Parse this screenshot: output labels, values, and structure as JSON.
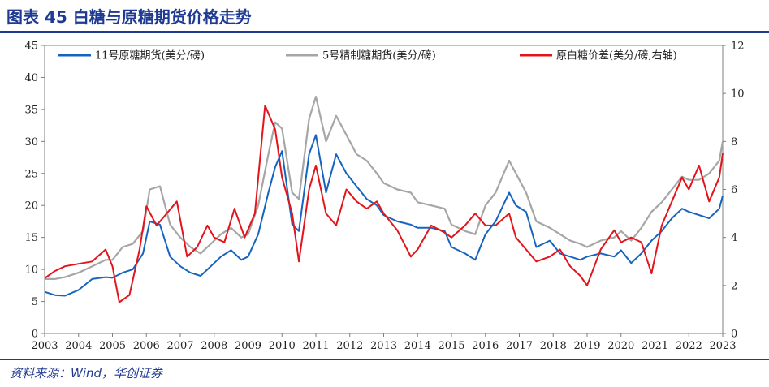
{
  "header": {
    "title": "图表 45 白糖与原糖期货价格走势"
  },
  "footer": {
    "source": "资料来源：Wind，华创证券"
  },
  "chart_data": {
    "type": "line",
    "title": "图表 45 白糖与原糖期货价格走势",
    "xlabel": "",
    "ylabel": "",
    "x": [
      2003,
      2004,
      2005,
      2006,
      2007,
      2008,
      2009,
      2010,
      2011,
      2012,
      2013,
      2014,
      2015,
      2016,
      2017,
      2018,
      2019,
      2020,
      2021,
      2022,
      2023
    ],
    "x_tick_labels": [
      "2003",
      "2004",
      "2005",
      "2006",
      "2007",
      "2008",
      "2009",
      "2010",
      "2011",
      "2012",
      "2013",
      "2014",
      "2015",
      "2016",
      "2017",
      "2018",
      "2019",
      "2020",
      "2021",
      "2022",
      "2023"
    ],
    "xlim": [
      2003,
      2023
    ],
    "ylim_left": [
      0,
      45
    ],
    "y_left_ticks": [
      0,
      5,
      10,
      15,
      20,
      25,
      30,
      35,
      40,
      45
    ],
    "ylim_right": [
      0,
      12
    ],
    "y_right_ticks": [
      0,
      2,
      4,
      6,
      8,
      10,
      12
    ],
    "legend_position": "top",
    "grid": false,
    "series": [
      {
        "name": "11号原糖期货(美分/磅)",
        "axis": "left",
        "color": "#1565c0",
        "x": [
          2003.0,
          2003.3,
          2003.6,
          2004.0,
          2004.4,
          2004.8,
          2005.0,
          2005.3,
          2005.6,
          2005.9,
          2006.1,
          2006.4,
          2006.7,
          2007.0,
          2007.3,
          2007.6,
          2007.9,
          2008.2,
          2008.5,
          2008.8,
          2009.0,
          2009.3,
          2009.6,
          2009.8,
          2010.0,
          2010.3,
          2010.5,
          2010.8,
          2011.0,
          2011.3,
          2011.6,
          2011.9,
          2012.2,
          2012.5,
          2012.8,
          2013.0,
          2013.4,
          2013.8,
          2014.0,
          2014.4,
          2014.8,
          2015.0,
          2015.4,
          2015.7,
          2016.0,
          2016.3,
          2016.7,
          2016.9,
          2017.2,
          2017.5,
          2017.9,
          2018.2,
          2018.5,
          2018.8,
          2019.0,
          2019.4,
          2019.8,
          2020.0,
          2020.3,
          2020.6,
          2020.9,
          2021.2,
          2021.5,
          2021.8,
          2022.0,
          2022.3,
          2022.6,
          2022.9,
          2023.0
        ],
        "values": [
          6.5,
          6.0,
          5.9,
          6.8,
          8.5,
          8.8,
          8.7,
          9.5,
          10.0,
          12.5,
          17.5,
          17.0,
          12.0,
          10.5,
          9.5,
          9.0,
          10.5,
          12.0,
          13.0,
          11.5,
          12.0,
          15.5,
          22.0,
          26.0,
          28.5,
          17.0,
          16.0,
          28.0,
          31.0,
          22.0,
          28.0,
          25.0,
          23.0,
          21.0,
          20.0,
          18.5,
          17.5,
          17.0,
          16.5,
          16.5,
          16.0,
          13.5,
          12.5,
          11.5,
          15.5,
          17.5,
          22.0,
          20.0,
          19.0,
          13.5,
          14.5,
          12.5,
          12.0,
          11.5,
          12.0,
          12.5,
          12.0,
          13.0,
          11.0,
          12.5,
          14.5,
          16.0,
          18.0,
          19.5,
          19.0,
          18.5,
          18.0,
          19.5,
          21.5
        ]
      },
      {
        "name": "5号精制糖期货(美分/磅)",
        "axis": "left",
        "color": "#a6a6a6",
        "x": [
          2003.0,
          2003.3,
          2003.6,
          2004.0,
          2004.4,
          2004.8,
          2005.0,
          2005.3,
          2005.6,
          2005.9,
          2006.1,
          2006.4,
          2006.7,
          2007.0,
          2007.3,
          2007.6,
          2007.9,
          2008.2,
          2008.5,
          2008.8,
          2009.0,
          2009.3,
          2009.6,
          2009.8,
          2010.0,
          2010.3,
          2010.5,
          2010.8,
          2011.0,
          2011.3,
          2011.6,
          2011.9,
          2012.2,
          2012.5,
          2012.8,
          2013.0,
          2013.4,
          2013.8,
          2014.0,
          2014.4,
          2014.8,
          2015.0,
          2015.4,
          2015.7,
          2016.0,
          2016.3,
          2016.7,
          2016.9,
          2017.2,
          2017.5,
          2017.9,
          2018.2,
          2018.5,
          2018.8,
          2019.0,
          2019.4,
          2019.8,
          2020.0,
          2020.3,
          2020.6,
          2020.9,
          2021.2,
          2021.5,
          2021.8,
          2022.0,
          2022.3,
          2022.6,
          2022.9,
          2023.0
        ],
        "values": [
          8.5,
          8.5,
          8.8,
          9.5,
          10.5,
          11.5,
          11.5,
          13.5,
          14.0,
          16.0,
          22.5,
          23.0,
          17.0,
          15.0,
          13.5,
          12.5,
          14.0,
          15.5,
          16.5,
          15.0,
          15.5,
          20.0,
          28.0,
          33.0,
          32.0,
          22.0,
          21.0,
          33.5,
          37.0,
          30.0,
          34.0,
          31.0,
          28.0,
          27.0,
          25.0,
          23.5,
          22.5,
          22.0,
          20.5,
          20.0,
          19.5,
          17.0,
          16.0,
          15.5,
          20.0,
          22.0,
          27.0,
          25.0,
          22.0,
          17.5,
          16.5,
          15.5,
          14.5,
          14.0,
          13.5,
          14.5,
          15.0,
          16.0,
          14.5,
          16.5,
          19.0,
          20.5,
          22.5,
          24.5,
          24.0,
          24.0,
          25.0,
          27.0,
          30.0
        ]
      },
      {
        "name": "原白糖价差(美分/磅,右轴)",
        "axis": "right",
        "color": "#e3141b",
        "x": [
          2003.0,
          2003.3,
          2003.6,
          2004.0,
          2004.4,
          2004.8,
          2005.0,
          2005.2,
          2005.5,
          2005.8,
          2006.0,
          2006.3,
          2006.6,
          2006.9,
          2007.2,
          2007.5,
          2007.8,
          2008.0,
          2008.3,
          2008.6,
          2008.9,
          2009.2,
          2009.5,
          2009.8,
          2010.0,
          2010.3,
          2010.5,
          2010.8,
          2011.0,
          2011.3,
          2011.6,
          2011.9,
          2012.2,
          2012.5,
          2012.8,
          2013.0,
          2013.4,
          2013.8,
          2014.0,
          2014.4,
          2014.8,
          2015.0,
          2015.4,
          2015.7,
          2016.0,
          2016.3,
          2016.7,
          2016.9,
          2017.2,
          2017.5,
          2017.9,
          2018.2,
          2018.5,
          2018.8,
          2019.0,
          2019.4,
          2019.8,
          2020.0,
          2020.3,
          2020.6,
          2020.9,
          2021.2,
          2021.5,
          2021.8,
          2022.0,
          2022.3,
          2022.6,
          2022.9,
          2023.0
        ],
        "values": [
          2.3,
          2.6,
          2.8,
          2.9,
          3.0,
          3.5,
          2.8,
          1.3,
          1.6,
          3.5,
          5.3,
          4.5,
          5.0,
          5.5,
          3.2,
          3.6,
          4.5,
          4.0,
          3.8,
          5.2,
          4.0,
          5.0,
          9.5,
          8.5,
          6.5,
          5.0,
          3.0,
          6.0,
          7.0,
          5.0,
          4.5,
          6.0,
          5.5,
          5.2,
          5.5,
          5.0,
          4.3,
          3.2,
          3.5,
          4.5,
          4.2,
          4.0,
          4.5,
          5.0,
          4.5,
          4.5,
          5.0,
          4.0,
          3.5,
          3.0,
          3.2,
          3.5,
          2.8,
          2.4,
          2.0,
          3.5,
          4.3,
          3.8,
          4.0,
          3.8,
          2.5,
          4.5,
          5.5,
          6.5,
          6.0,
          7.0,
          5.5,
          6.5,
          7.5
        ]
      }
    ]
  }
}
